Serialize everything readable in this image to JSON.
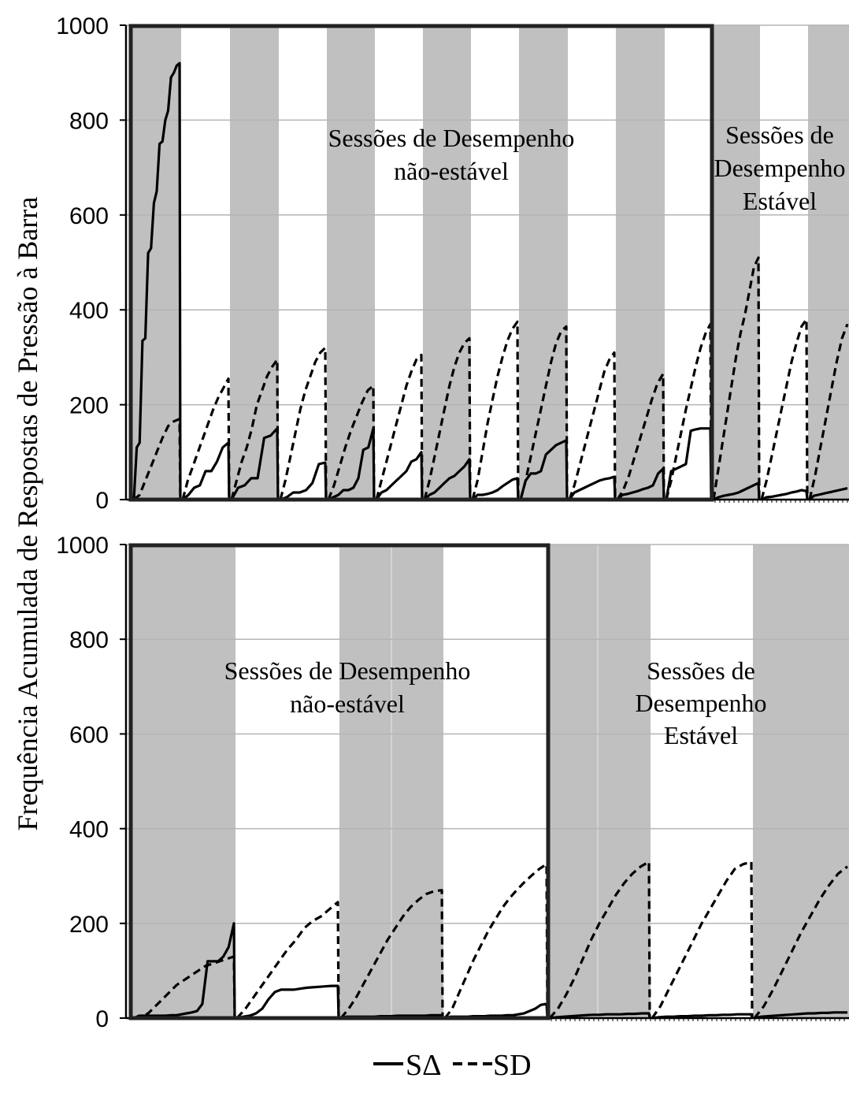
{
  "figure": {
    "ylabel": "Frequência Acumulada de Respostas de Pressão à Barra",
    "legend": [
      {
        "label": "SΔ",
        "style": "solid"
      },
      {
        "label": "SD",
        "style": "dashed"
      }
    ],
    "colors": {
      "shade": "#c0c0c0",
      "grid": "#b4b4b4",
      "line": "#000000"
    }
  },
  "chart_data": [
    {
      "type": "line",
      "ylim": [
        0,
        1000
      ],
      "yticks": [
        "0",
        "200",
        "400",
        "600",
        "800",
        "1000"
      ],
      "grid": true,
      "annotations": [
        {
          "name": "unstable",
          "lines": [
            "Sessões de Desempenho",
            "não-estável"
          ]
        },
        {
          "name": "stable",
          "lines": [
            "Sessões de",
            "Desempenho",
            "Estável"
          ]
        }
      ],
      "boxed_sessions": "1-12",
      "session_shading": [
        "gray",
        "white",
        "gray",
        "white",
        "gray",
        "white",
        "gray",
        "white",
        "gray",
        "white",
        "gray",
        "white",
        "gray",
        "white",
        "gray"
      ],
      "series": [
        {
          "name": "SΔ",
          "sessions": [
            [
              0,
              110,
              120,
              335,
              340,
              520,
              530,
              625,
              650,
              750,
              755,
              800,
              820,
              890,
              900,
              915,
              920,
              0
            ],
            [
              0,
              10,
              25,
              30,
              60,
              60,
              80,
              110,
              120,
              0
            ],
            [
              0,
              25,
              30,
              45,
              45,
              130,
              135,
              150,
              0
            ],
            [
              0,
              5,
              15,
              15,
              20,
              35,
              75,
              78,
              0
            ],
            [
              0,
              5,
              10,
              20,
              20,
              25,
              45,
              105,
              110,
              150,
              0
            ],
            [
              0,
              15,
              20,
              30,
              40,
              50,
              60,
              80,
              85,
              100,
              0
            ],
            [
              0,
              10,
              15,
              25,
              35,
              45,
              50,
              60,
              70,
              85,
              0
            ],
            [
              0,
              10,
              10,
              12,
              15,
              20,
              28,
              35,
              42,
              45,
              0
            ],
            [
              0,
              40,
              55,
              55,
              60,
              95,
              105,
              115,
              120,
              125,
              0
            ],
            [
              0,
              15,
              20,
              25,
              30,
              35,
              40,
              43,
              45,
              48,
              0
            ],
            [
              0,
              10,
              12,
              15,
              18,
              22,
              25,
              30,
              55,
              65,
              0
            ],
            [
              0,
              60,
              65,
              70,
              75,
              145,
              148,
              150,
              150,
              150,
              0
            ],
            [
              0,
              5,
              8,
              10,
              12,
              15,
              20,
              25,
              30,
              35,
              0
            ],
            [
              0,
              5,
              6,
              8,
              10,
              12,
              15,
              17,
              20,
              18,
              0
            ],
            [
              0,
              8,
              10,
              12,
              14,
              16,
              18,
              20,
              22,
              24
            ]
          ]
        },
        {
          "name": "SD",
          "sessions": [
            [
              0,
              10,
              40,
              70,
              100,
              130,
              155,
              165,
              170,
              0
            ],
            [
              0,
              40,
              70,
              100,
              130,
              160,
              190,
              215,
              235,
              255,
              0
            ],
            [
              0,
              40,
              80,
              110,
              150,
              200,
              230,
              260,
              280,
              295,
              0
            ],
            [
              0,
              40,
              90,
              140,
              190,
              230,
              260,
              290,
              310,
              320,
              0
            ],
            [
              0,
              30,
              70,
              110,
              145,
              175,
              205,
              230,
              240,
              0
            ],
            [
              0,
              40,
              80,
              120,
              160,
              200,
              240,
              270,
              295,
              305,
              0
            ],
            [
              0,
              40,
              90,
              140,
              190,
              240,
              280,
              310,
              330,
              340,
              0
            ],
            [
              0,
              40,
              100,
              160,
              210,
              260,
              300,
              335,
              360,
              375,
              0
            ],
            [
              0,
              40,
              90,
              140,
              190,
              240,
              290,
              330,
              355,
              365,
              0
            ],
            [
              0,
              30,
              70,
              110,
              150,
              190,
              230,
              270,
              295,
              310,
              0
            ],
            [
              0,
              20,
              50,
              90,
              130,
              170,
              210,
              245,
              265,
              0
            ],
            [
              0,
              40,
              90,
              140,
              190,
              235,
              280,
              320,
              350,
              370,
              0
            ],
            [
              0,
              60,
              120,
              180,
              240,
              300,
              350,
              390,
              440,
              490,
              510,
              0
            ],
            [
              0,
              40,
              90,
              140,
              190,
              240,
              290,
              330,
              365,
              380,
              0
            ],
            [
              0,
              50,
              110,
              170,
              230,
              290,
              340,
              370
            ]
          ]
        }
      ]
    },
    {
      "type": "line",
      "ylim": [
        0,
        1000
      ],
      "yticks": [
        "0",
        "200",
        "400",
        "600",
        "800",
        "1000"
      ],
      "grid": true,
      "annotations": [
        {
          "name": "unstable",
          "lines": [
            "Sessões de Desempenho",
            "não-estável"
          ]
        },
        {
          "name": "stable",
          "lines": [
            "Sessões de",
            "Desempenho",
            "Estável"
          ]
        }
      ],
      "boxed_sessions": "1-4",
      "session_shading": [
        "gray",
        "white",
        "gray",
        "white",
        "gray",
        "white",
        "gray"
      ],
      "series": [
        {
          "name": "SΔ",
          "sessions": [
            [
              0,
              5,
              5,
              5,
              5,
              5,
              5,
              6,
              6,
              8,
              10,
              12,
              15,
              30,
              120,
              120,
              120,
              130,
              150,
              200,
              0
            ],
            [
              0,
              3,
              5,
              10,
              20,
              40,
              55,
              60,
              60,
              60,
              62,
              64,
              65,
              66,
              67,
              68,
              68,
              0
            ],
            [
              0,
              3,
              3,
              3,
              3,
              3,
              3,
              4,
              4,
              4,
              5,
              5,
              5,
              5,
              5,
              5,
              6,
              6,
              6,
              0
            ],
            [
              0,
              3,
              3,
              3,
              3,
              4,
              4,
              4,
              5,
              5,
              5,
              6,
              6,
              8,
              10,
              15,
              20,
              28,
              30,
              0
            ],
            [
              0,
              2,
              3,
              4,
              5,
              6,
              7,
              7,
              8,
              8,
              8,
              9,
              9,
              10,
              10,
              0
            ],
            [
              0,
              2,
              3,
              3,
              4,
              4,
              5,
              5,
              6,
              6,
              7,
              7,
              8,
              8,
              8,
              0
            ],
            [
              0,
              3,
              4,
              5,
              6,
              7,
              8,
              9,
              10,
              10,
              11,
              11,
              12,
              12,
              12
            ]
          ]
        },
        {
          "name": "SD",
          "sessions": [
            [
              0,
              2,
              10,
              25,
              40,
              55,
              70,
              80,
              90,
              100,
              110,
              115,
              120,
              125,
              130,
              0
            ],
            [
              0,
              20,
              45,
              70,
              95,
              120,
              145,
              165,
              190,
              205,
              215,
              230,
              245,
              0
            ],
            [
              0,
              20,
              45,
              75,
              105,
              135,
              165,
              190,
              215,
              235,
              250,
              262,
              268,
              270,
              0
            ],
            [
              0,
              20,
              55,
              90,
              125,
              155,
              185,
              210,
              235,
              255,
              272,
              288,
              302,
              315,
              325,
              0
            ],
            [
              0,
              20,
              50,
              85,
              125,
              165,
              200,
              230,
              260,
              285,
              305,
              320,
              330,
              0
            ],
            [
              0,
              25,
              60,
              95,
              130,
              165,
              200,
              230,
              260,
              290,
              315,
              325,
              330,
              0
            ],
            [
              0,
              25,
              60,
              100,
              140,
              180,
              215,
              250,
              280,
              305,
              320
            ]
          ]
        }
      ]
    }
  ]
}
